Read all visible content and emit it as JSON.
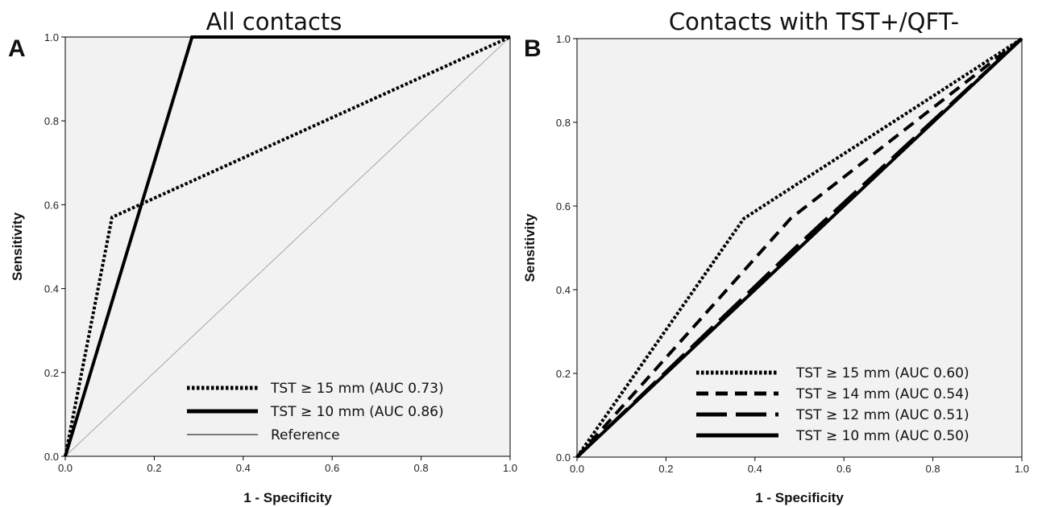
{
  "colors": {
    "plot_bg": "#f2f2f2",
    "line": "#000000",
    "reference": "#a6a6a6"
  },
  "chart_data": [
    {
      "type": "line",
      "panel": "A",
      "title": "All contacts",
      "xlabel": "1 - Specificity",
      "ylabel": "Sensitivity",
      "xlim": [
        0,
        1
      ],
      "ylim": [
        0,
        1
      ],
      "xticks": [
        "0.0",
        "0.2",
        "0.4",
        "0.6",
        "0.8",
        "1.0"
      ],
      "yticks": [
        "0.0",
        "0.2",
        "0.4",
        "0.6",
        "0.8",
        "1.0"
      ],
      "grid": false,
      "legend_position": "bottom-right",
      "series": [
        {
          "name": "TST ≥ 15 mm (AUC 0.73)",
          "style": "dotted",
          "x": [
            0,
            0.105,
            1
          ],
          "y": [
            0,
            0.57,
            1
          ]
        },
        {
          "name": "TST ≥ 10 mm (AUC 0.86)",
          "style": "solid",
          "x": [
            0,
            0.285,
            1
          ],
          "y": [
            0,
            1,
            1
          ]
        },
        {
          "name": "Reference",
          "style": "reference",
          "x": [
            0,
            1
          ],
          "y": [
            0,
            1
          ]
        }
      ]
    },
    {
      "type": "line",
      "panel": "B",
      "title": "Contacts with TST+/QFT-",
      "xlabel": "1 - Specificity",
      "ylabel": "Sensitivity",
      "xlim": [
        0,
        1
      ],
      "ylim": [
        0,
        1
      ],
      "xticks": [
        "0.0",
        "0.2",
        "0.4",
        "0.6",
        "0.8",
        "1.0"
      ],
      "yticks": [
        "0.0",
        "0.2",
        "0.4",
        "0.6",
        "0.8",
        "1.0"
      ],
      "grid": false,
      "legend_position": "bottom-right",
      "series": [
        {
          "name": "TST ≥ 15 mm (AUC 0.60)",
          "style": "dotted",
          "x": [
            0,
            0.375,
            1
          ],
          "y": [
            0,
            0.57,
            1
          ]
        },
        {
          "name": "TST ≥ 14 mm (AUC 0.54)",
          "style": "dashed",
          "x": [
            0,
            0.48,
            1
          ],
          "y": [
            0,
            0.57,
            1
          ]
        },
        {
          "name": "TST ≥ 12 mm (AUC 0.51)",
          "style": "longdash",
          "x": [
            0,
            0.5,
            1
          ],
          "y": [
            0,
            0.51,
            1
          ]
        },
        {
          "name": "TST ≥ 10 mm (AUC 0.50)",
          "style": "solid",
          "x": [
            0,
            1
          ],
          "y": [
            0,
            1
          ]
        }
      ]
    }
  ]
}
